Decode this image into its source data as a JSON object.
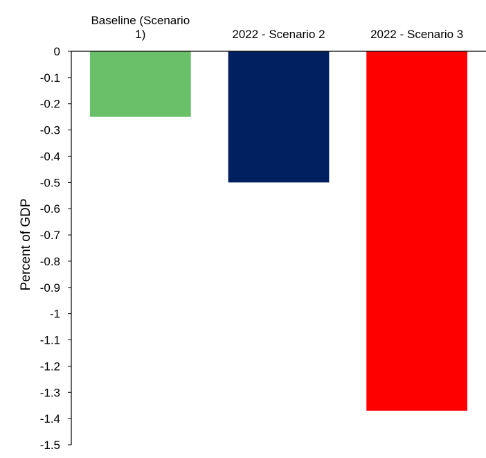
{
  "chart_data": {
    "type": "bar",
    "title": "",
    "xlabel": "",
    "ylabel": "Percent of GDP",
    "ylim": [
      -1.5,
      0
    ],
    "yticks": [
      0,
      -0.1,
      -0.2,
      -0.3,
      -0.4,
      -0.5,
      -0.6,
      -0.7,
      -0.8,
      -0.9,
      -1,
      -1.1,
      -1.2,
      -1.3,
      -1.4,
      -1.5
    ],
    "category_label_position": "top",
    "grid": false,
    "legend": "none",
    "categories": [
      [
        "Baseline (Scenario",
        "1)"
      ],
      [
        "2022 - Scenario 2"
      ],
      [
        "2022 - Scenario 3"
      ]
    ],
    "values": [
      -0.25,
      -0.5,
      -1.37
    ],
    "colors": [
      "#6abf69",
      "#002060",
      "#ff0000"
    ]
  }
}
